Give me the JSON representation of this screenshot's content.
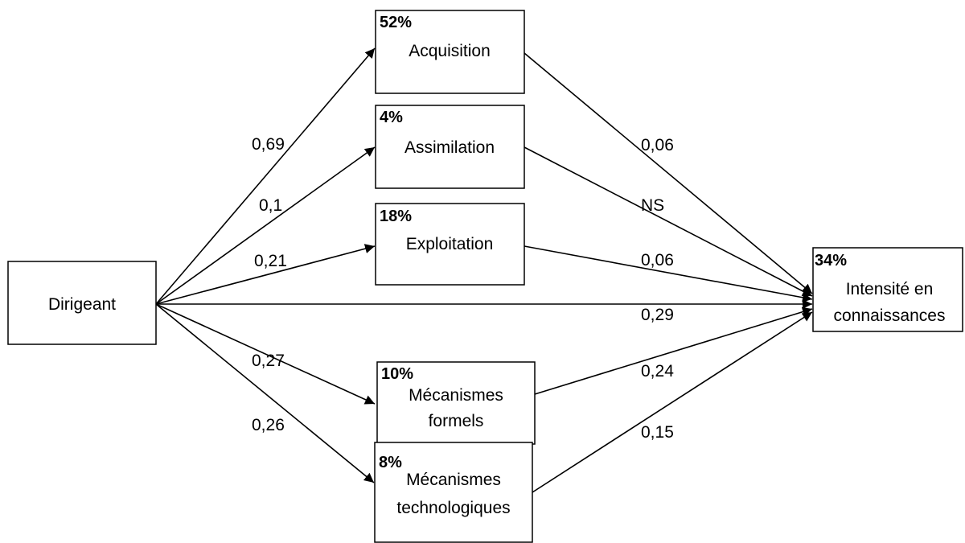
{
  "nodes": {
    "dirigeant": {
      "label_lines": [
        "Dirigeant"
      ]
    },
    "acquisition": {
      "pct": "52%",
      "label_lines": [
        "Acquisition"
      ]
    },
    "assimilation": {
      "pct": "4%",
      "label_lines": [
        "Assimilation"
      ]
    },
    "exploitation": {
      "pct": "18%",
      "label_lines": [
        "Exploitation"
      ]
    },
    "mecanismes_formels": {
      "pct": "10%",
      "label_lines": [
        "Mécanismes",
        "formels"
      ]
    },
    "mecanismes_technologiques": {
      "pct": "8%",
      "label_lines": [
        "Mécanismes",
        "technologiques"
      ]
    },
    "intensite": {
      "pct": "34%",
      "label_lines": [
        "Intensité en",
        "connaissances"
      ]
    }
  },
  "edges": [
    {
      "from": "dirigeant",
      "to": "acquisition",
      "label": "0,69"
    },
    {
      "from": "dirigeant",
      "to": "assimilation",
      "label": "0,1"
    },
    {
      "from": "dirigeant",
      "to": "exploitation",
      "label": "0,21"
    },
    {
      "from": "dirigeant",
      "to": "mecanismes_formels",
      "label": "0,27"
    },
    {
      "from": "dirigeant",
      "to": "mecanismes_technologiques",
      "label": "0,26"
    },
    {
      "from": "dirigeant",
      "to": "intensite",
      "label": "0,29"
    },
    {
      "from": "acquisition",
      "to": "intensite",
      "label": "0,06"
    },
    {
      "from": "assimilation",
      "to": "intensite",
      "label": "NS"
    },
    {
      "from": "exploitation",
      "to": "intensite",
      "label": "0,06"
    },
    {
      "from": "mecanismes_formels",
      "to": "intensite",
      "label": "0,24"
    },
    {
      "from": "mecanismes_technologiques",
      "to": "intensite",
      "label": "0,15"
    }
  ]
}
